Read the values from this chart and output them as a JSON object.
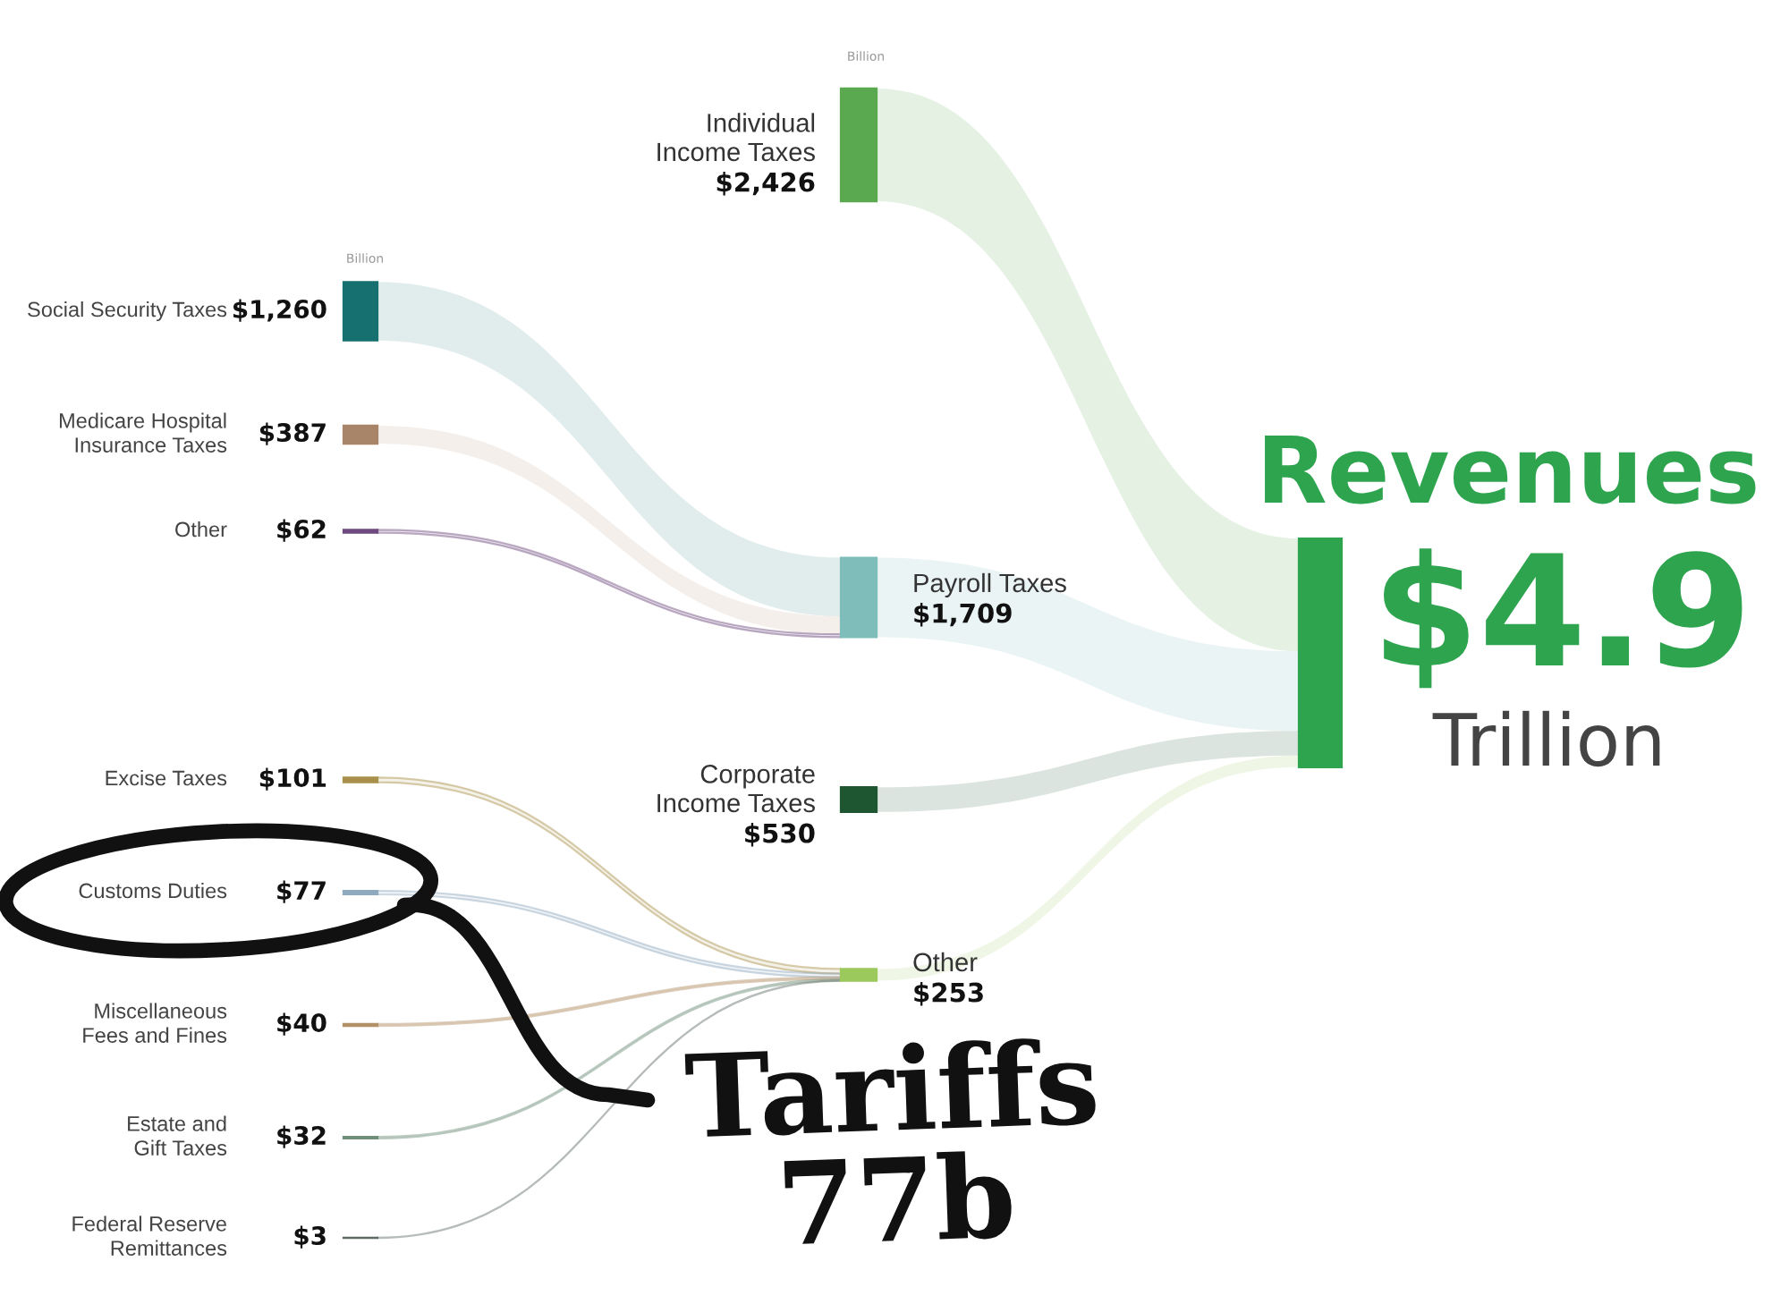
{
  "chart_data": {
    "type": "other",
    "title": "Revenues",
    "subtitle": "$4.9 Trillion",
    "color": "#2ea44f",
    "categories": [
      "Social Security Taxes",
      "Medicare Hospital\nInsurance Taxes",
      "Other",
      "Excise Taxes",
      "Customs Duties",
      "Miscellaneous\nFees and Fines",
      "Estate and\nGift Taxes",
      "Federal Reserve\nRemittances",
      "Individual\nIncome Taxes",
      "Payroll Taxes",
      "Corporate\nIncome Taxes",
      "Other"
    ],
    "values": [
      1260,
      387,
      62,
      101,
      77,
      40,
      32,
      3,
      2426,
      1709,
      530,
      253
    ],
    "value_labels": [
      "$1,260",
      "$387",
      "$62",
      "$101",
      "$77",
      "$40",
      "$32",
      "$3",
      "$2,426",
      "$1,709",
      "$530",
      "$253"
    ],
    "colors": [
      "#16706f",
      "#a88468",
      "#6e4a7e",
      "#a8904a",
      "#8fa9bf",
      "#b39168",
      "#6f8f7a",
      "#5d6b62",
      "#5aa850",
      "#7fbdbb",
      "#1e5631",
      "#9cc95c"
    ],
    "annotations": [
      "Billion",
      "Billion",
      "Tariffs\n77b"
    ]
  }
}
